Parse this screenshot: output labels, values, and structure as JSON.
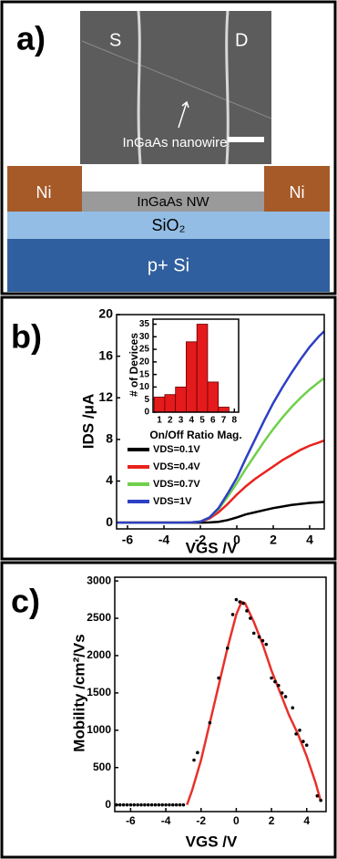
{
  "panel_a": {
    "label": "a)",
    "sem": {
      "source": "S",
      "drain": "D",
      "nanowire": "InGaAs nanowire"
    },
    "layers": {
      "left_contact": "Ni",
      "right_contact": "Ni",
      "nanowire": "InGaAs NW",
      "oxide": "SiO₂",
      "substrate": "p+ Si"
    }
  },
  "chart_data": [
    {
      "type": "line",
      "label": "b)",
      "xlabel": "VGS /V",
      "ylabel": "IDS /μA",
      "x": [
        -6.6,
        -6,
        -5,
        -4,
        -3,
        -2.5,
        -2,
        -1.5,
        -1,
        -0.5,
        0,
        0.5,
        1,
        1.5,
        2,
        2.5,
        3,
        3.5,
        4,
        4.5,
        4.8
      ],
      "series": [
        {
          "name": "VDS=0.1V",
          "color": "#000000",
          "values": [
            0,
            0,
            0,
            0,
            0,
            0,
            0,
            0.02,
            0.08,
            0.25,
            0.5,
            0.8,
            1.0,
            1.2,
            1.4,
            1.55,
            1.7,
            1.8,
            1.9,
            1.95,
            2.0
          ]
        },
        {
          "name": "VDS=0.4V",
          "color": "#e8231c",
          "values": [
            0,
            0,
            0,
            0,
            0,
            0.02,
            0.1,
            0.4,
            1.0,
            1.8,
            2.7,
            3.5,
            4.2,
            4.8,
            5.4,
            6.0,
            6.5,
            7.0,
            7.4,
            7.7,
            7.9
          ]
        },
        {
          "name": "VDS=0.7V",
          "color": "#6fd04a",
          "values": [
            0,
            0,
            0,
            0,
            0,
            0.02,
            0.1,
            0.5,
            1.3,
            2.5,
            3.8,
            5.2,
            6.5,
            7.8,
            9.0,
            10.1,
            11.1,
            12.0,
            12.8,
            13.5,
            13.9
          ]
        },
        {
          "name": "VDS=1V",
          "color": "#2d3fc4",
          "values": [
            0,
            0,
            0,
            0,
            0,
            0.02,
            0.1,
            0.5,
            1.4,
            2.8,
            4.3,
            6.2,
            8.0,
            9.8,
            11.5,
            13.0,
            14.4,
            15.7,
            16.9,
            17.9,
            18.4
          ]
        }
      ],
      "xlim": [
        -6.6,
        4.8
      ],
      "ylim": [
        -0.6,
        20
      ],
      "xticks": [
        -6,
        -4,
        -2,
        0,
        2,
        4
      ],
      "yticks": [
        0,
        4,
        8,
        12,
        16,
        20
      ],
      "legend": "lower left"
    },
    {
      "type": "bar",
      "xlabel": "On/Off Ratio Mag.",
      "ylabel": "# of Devices",
      "x": [
        1,
        2,
        3,
        4,
        5,
        6,
        7
      ],
      "values": [
        6,
        7,
        10,
        28,
        35,
        12,
        2
      ],
      "color": "#e41a1c",
      "xlim": [
        0.4,
        8.4
      ],
      "ylim": [
        0,
        37
      ],
      "xticks": [
        1,
        2,
        3,
        4,
        5,
        6,
        7,
        8
      ],
      "yticks": [
        0,
        5,
        10,
        15,
        20,
        25,
        30,
        35
      ]
    },
    {
      "type": "line",
      "label": "c)",
      "xlabel": "VGS /V",
      "ylabel": "Mobility /cm²/Vs",
      "x": [
        -2.8,
        -2.5,
        -2,
        -1.5,
        -1,
        -0.5,
        0,
        0.3,
        0.5,
        1,
        1.5,
        2,
        2.5,
        3,
        3.5,
        4,
        4.5,
        4.8
      ],
      "series": [
        {
          "color": "#e8312a",
          "values": [
            0,
            200,
            600,
            1100,
            1600,
            2100,
            2550,
            2720,
            2700,
            2450,
            2150,
            1800,
            1500,
            1200,
            950,
            650,
            300,
            50
          ]
        }
      ],
      "points": {
        "color": "#000000",
        "x": [
          -6.8,
          -6.6,
          -6.4,
          -6.2,
          -6.0,
          -5.8,
          -5.6,
          -5.4,
          -5.2,
          -5.0,
          -4.8,
          -4.6,
          -4.4,
          -4.2,
          -4.0,
          -3.8,
          -3.6,
          -3.4,
          -3.2,
          -3.0,
          -2.4,
          -2.2,
          -1.5,
          -1.0,
          -0.5,
          -0.2,
          0,
          0.2,
          0.4,
          0.6,
          0.8,
          1.0,
          1.3,
          1.5,
          1.7,
          2.0,
          2.2,
          2.4,
          2.6,
          2.8,
          3.2,
          3.4,
          3.6,
          3.8,
          4.0,
          4.6,
          4.8
        ],
        "y": [
          0,
          0,
          0,
          0,
          0,
          0,
          0,
          0,
          0,
          0,
          0,
          0,
          0,
          0,
          0,
          0,
          0,
          0,
          0,
          0,
          600,
          700,
          1100,
          1700,
          2100,
          2550,
          2750,
          2720,
          2700,
          2600,
          2500,
          2300,
          2250,
          2200,
          2150,
          1700,
          1650,
          1600,
          1500,
          1450,
          1300,
          950,
          1000,
          850,
          800,
          120,
          60
        ]
      },
      "xlim": [
        -6.9,
        5.1
      ],
      "ylim": [
        -90,
        3050
      ],
      "xticks": [
        -6,
        -4,
        -2,
        0,
        2,
        4
      ],
      "yticks": [
        0,
        500,
        1000,
        1500,
        2000,
        2500,
        3000
      ]
    }
  ]
}
